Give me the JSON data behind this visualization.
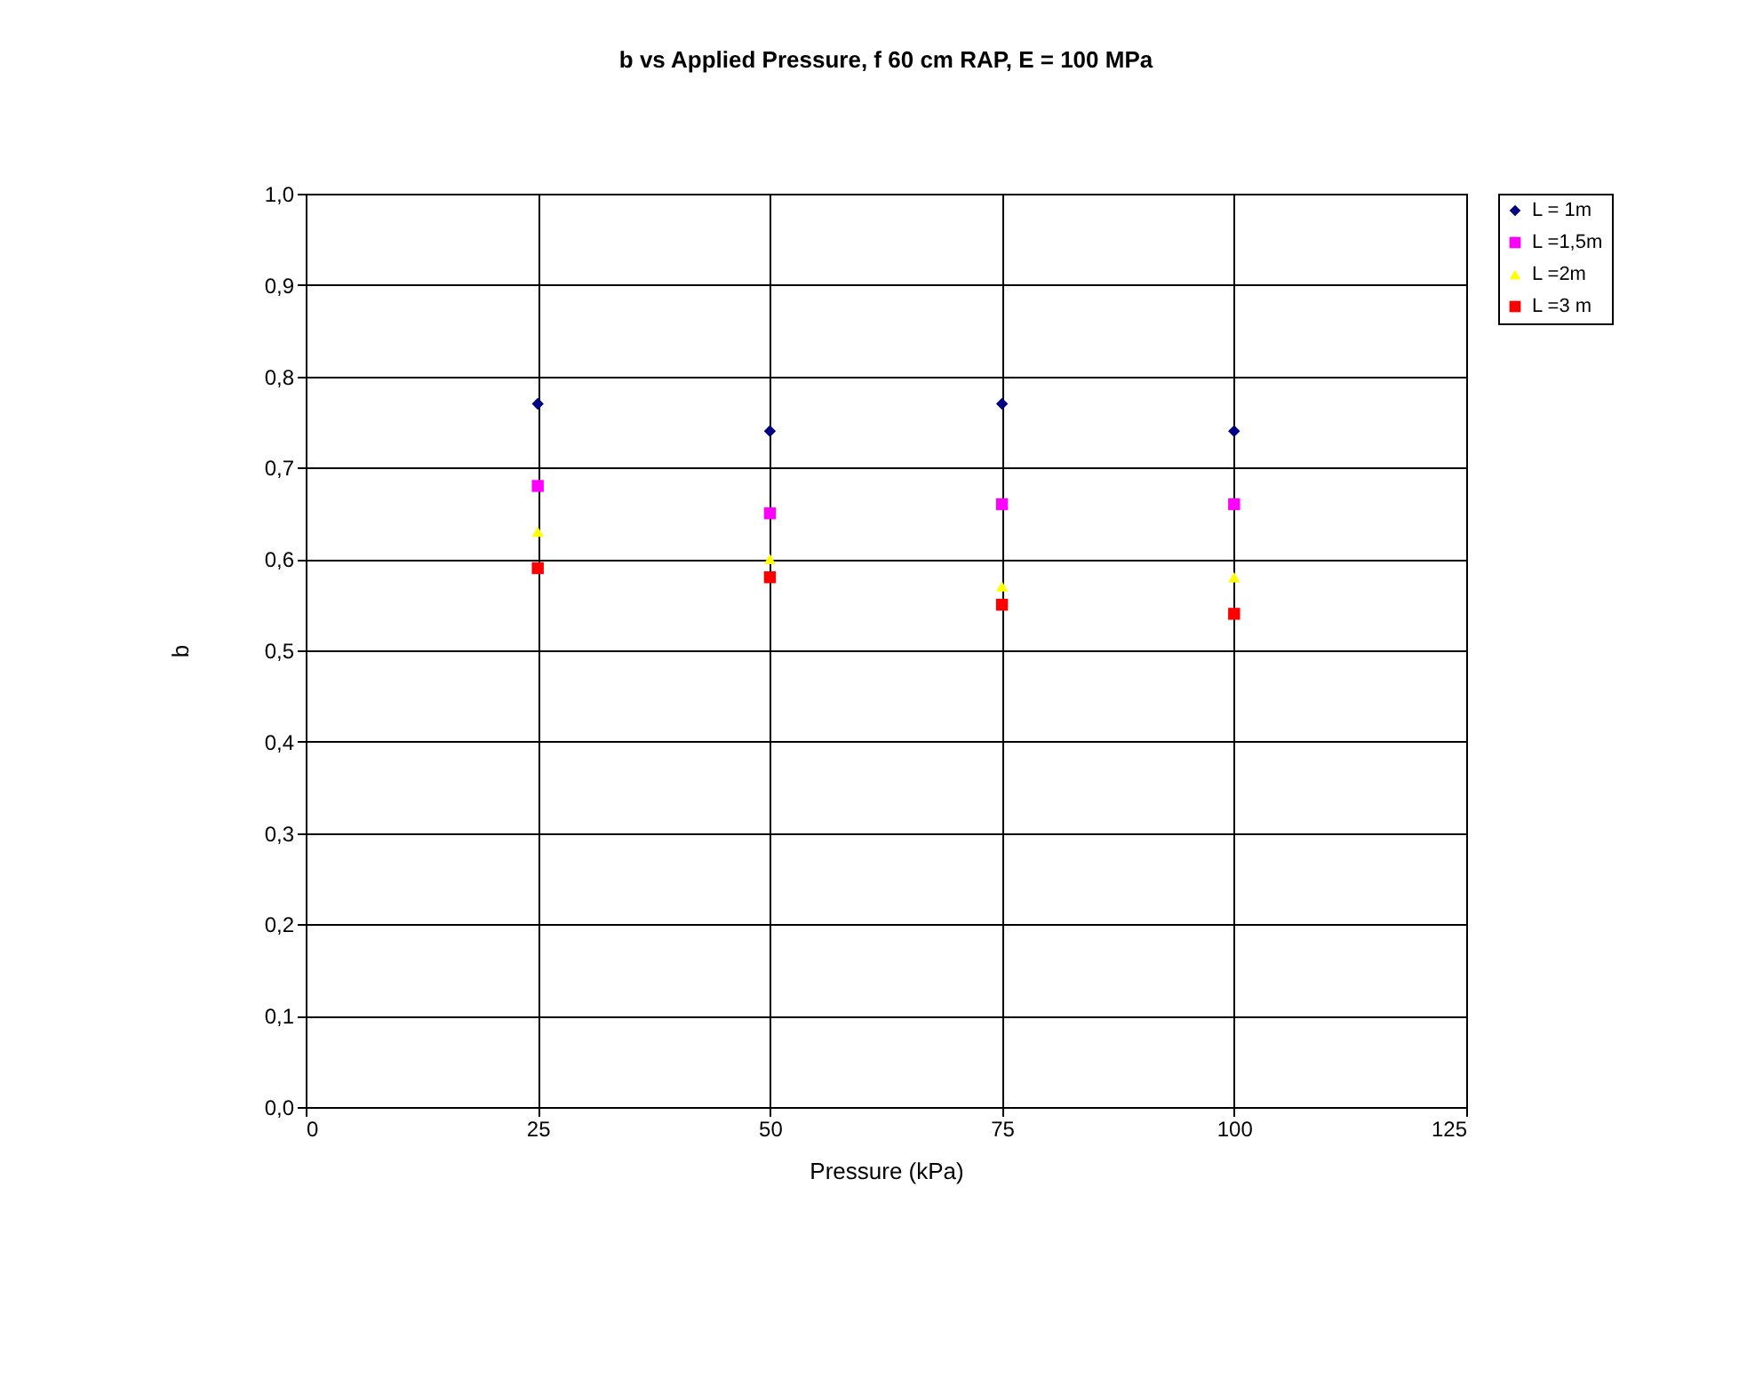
{
  "chart_data": {
    "type": "scatter",
    "title": "b vs Applied Pressure, f 60 cm RAP, E = 100 MPa",
    "xlabel": "Pressure (kPa)",
    "ylabel": "b",
    "x": [
      25,
      50,
      75,
      100
    ],
    "series": [
      {
        "name": "L = 1m",
        "color": "#000080",
        "marker": "diamond",
        "values": [
          0.77,
          0.74,
          0.77,
          0.74
        ]
      },
      {
        "name": "L =1,5m",
        "color": "#ff00ff",
        "marker": "square",
        "values": [
          0.68,
          0.65,
          0.66,
          0.66
        ]
      },
      {
        "name": "L =2m",
        "color": "#ffff00",
        "marker": "triangle",
        "values": [
          0.63,
          0.6,
          0.57,
          0.58
        ]
      },
      {
        "name": "L =3 m",
        "color": "#ff0000",
        "marker": "square",
        "values": [
          0.59,
          0.58,
          0.55,
          0.54
        ]
      }
    ],
    "xlim": [
      0,
      125
    ],
    "xticks": [
      0,
      25,
      50,
      75,
      100,
      125
    ],
    "ylim": [
      0,
      1
    ],
    "yticks": [
      {
        "value": 0,
        "label": "0,0"
      },
      {
        "value": 0.1,
        "label": "0,1"
      },
      {
        "value": 0.2,
        "label": "0,2"
      },
      {
        "value": 0.3,
        "label": "0,3"
      },
      {
        "value": 0.4,
        "label": "0,4"
      },
      {
        "value": 0.5,
        "label": "0,5"
      },
      {
        "value": 0.6,
        "label": "0,6"
      },
      {
        "value": 0.7,
        "label": "0,7"
      },
      {
        "value": 0.8,
        "label": "0,8"
      },
      {
        "value": 0.9,
        "label": "0,9"
      },
      {
        "value": 1,
        "label": "1,0"
      }
    ],
    "grid": true,
    "legend": "right"
  }
}
